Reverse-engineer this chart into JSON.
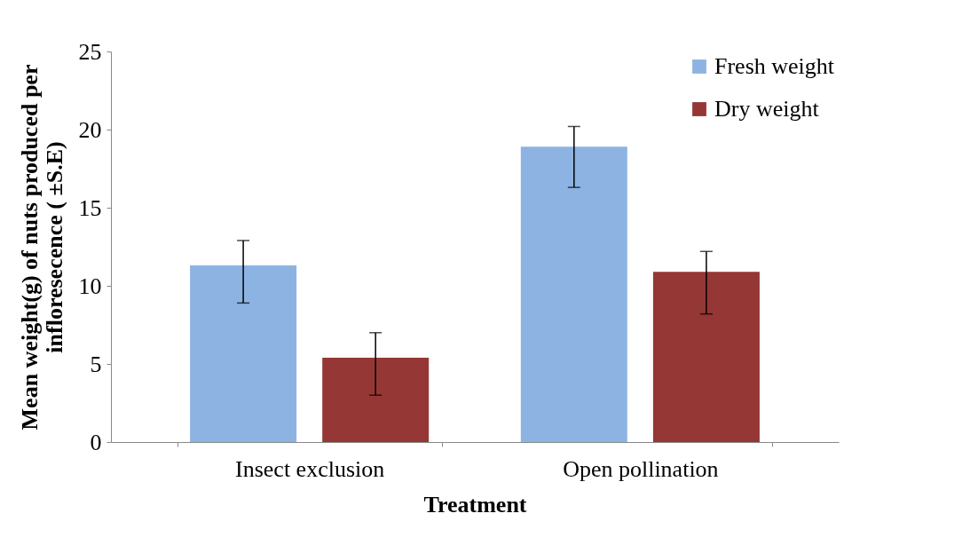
{
  "chart_data": {
    "type": "bar",
    "xlabel": "Treatment",
    "ylabel": "Mean  weight(g)  of nuts produced per infloresecence ( ±S.E)",
    "categories": [
      "Insect exclusion",
      "Open pollination"
    ],
    "series": [
      {
        "name": "Fresh weight",
        "color": "#8db3e2",
        "values": [
          11.3,
          18.9
        ],
        "errors": [
          [
            8.9,
            12.9
          ],
          [
            16.3,
            20.2
          ]
        ]
      },
      {
        "name": "Dry weight",
        "color": "#953735",
        "values": [
          5.4,
          10.9
        ],
        "errors": [
          [
            3.0,
            7.0
          ],
          [
            8.2,
            12.2
          ]
        ]
      }
    ],
    "ylim": [
      0,
      25
    ],
    "yticks": [
      0,
      5,
      10,
      15,
      20,
      25
    ],
    "grid": false,
    "legend": "top right"
  }
}
